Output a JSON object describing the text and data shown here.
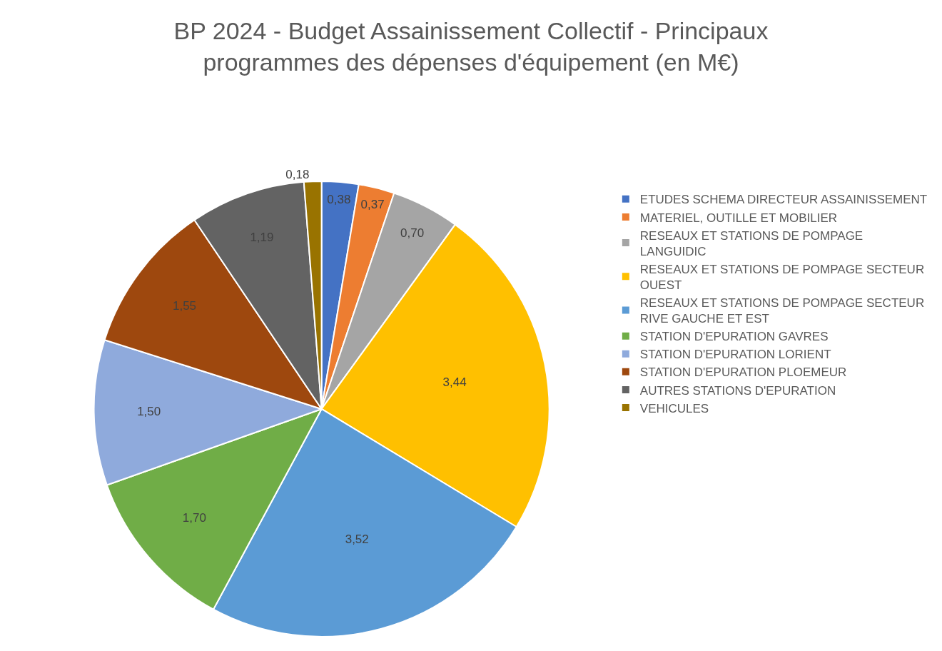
{
  "chart_data": {
    "type": "pie",
    "title": "BP 2024 - Budget Assainissement Collectif - Principaux programmes des dépenses d'équipement (en M€)",
    "categories": [
      "ETUDES SCHEMA DIRECTEUR ASSAINISSEMENT",
      "MATERIEL, OUTILLE ET MOBILIER",
      "RESEAUX ET STATIONS DE POMPAGE LANGUIDIC",
      "RESEAUX ET STATIONS DE POMPAGE SECTEUR OUEST",
      "RESEAUX ET STATIONS DE POMPAGE SECTEUR RIVE GAUCHE ET EST",
      "STATION D'EPURATION GAVRES",
      "STATION D'EPURATION LORIENT",
      "STATION D'EPURATION PLOEMEUR",
      "AUTRES STATIONS D'EPURATION",
      "VEHICULES"
    ],
    "values": [
      0.38,
      0.37,
      0.7,
      3.44,
      3.52,
      1.7,
      1.5,
      1.55,
      1.19,
      0.18
    ],
    "value_labels": [
      "0,38",
      "0,37",
      "0,70",
      "3,44",
      "3,52",
      "1,70",
      "1,50",
      "1,55",
      "1,19",
      "0,18"
    ],
    "colors": [
      "#4472c4",
      "#ed7d31",
      "#a5a5a5",
      "#ffc000",
      "#5b9bd5",
      "#70ad47",
      "#8faadc",
      "#9e480e",
      "#636363",
      "#997300"
    ],
    "legend": "right"
  }
}
